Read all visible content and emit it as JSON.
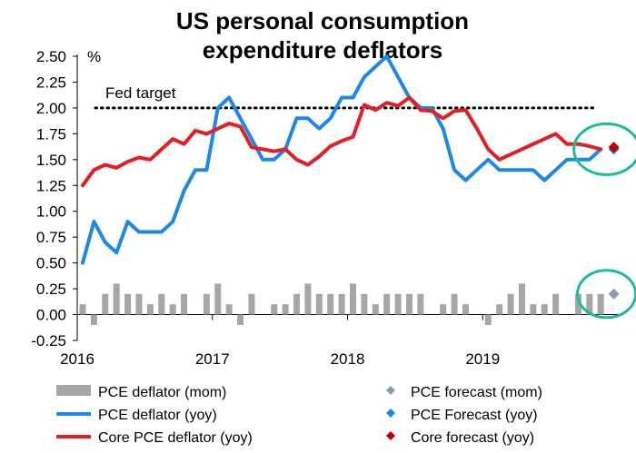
{
  "chart_data": {
    "type": "line",
    "title_lines": [
      "US personal consumption",
      "expenditure deflators"
    ],
    "ylabel": "%",
    "ylim": [
      -0.25,
      2.5
    ],
    "yticks": [
      -0.25,
      0.0,
      0.25,
      0.5,
      0.75,
      1.0,
      1.25,
      1.5,
      1.75,
      2.0,
      2.25,
      2.5
    ],
    "ytick_labels": [
      "-0.25",
      "0.00",
      "0.25",
      "0.50",
      "0.75",
      "1.00",
      "1.25",
      "1.50",
      "1.75",
      "2.00",
      "2.25",
      "2.50"
    ],
    "x_start": "2016-01",
    "x_end": "2019-12",
    "year_ticks": [
      {
        "month": "2016-01",
        "label": "2016"
      },
      {
        "month": "2017-01",
        "label": "2017"
      },
      {
        "month": "2018-01",
        "label": "2018"
      },
      {
        "month": "2019-01",
        "label": "2019"
      }
    ],
    "fed_target": {
      "value": 2.0,
      "label": "Fed target"
    },
    "series": [
      {
        "name": "PCE deflator (mom)",
        "kind": "bar",
        "color": "#A6A6A6",
        "months": [
          "2016-01",
          "2016-02",
          "2016-03",
          "2016-04",
          "2016-05",
          "2016-06",
          "2016-07",
          "2016-08",
          "2016-09",
          "2016-10",
          "2016-11",
          "2016-12",
          "2017-01",
          "2017-02",
          "2017-03",
          "2017-04",
          "2017-05",
          "2017-06",
          "2017-07",
          "2017-08",
          "2017-09",
          "2017-10",
          "2017-11",
          "2017-12",
          "2018-01",
          "2018-02",
          "2018-03",
          "2018-04",
          "2018-05",
          "2018-06",
          "2018-07",
          "2018-08",
          "2018-09",
          "2018-10",
          "2018-11",
          "2018-12",
          "2019-01",
          "2019-02",
          "2019-03",
          "2019-04",
          "2019-05",
          "2019-06",
          "2019-07",
          "2019-08",
          "2019-09",
          "2019-10",
          "2019-11"
        ],
        "values": [
          0.1,
          -0.1,
          0.2,
          0.3,
          0.2,
          0.2,
          0.1,
          0.2,
          0.1,
          0.2,
          0.0,
          0.2,
          0.3,
          0.1,
          -0.1,
          0.2,
          0.0,
          0.1,
          0.1,
          0.2,
          0.3,
          0.2,
          0.2,
          0.2,
          0.3,
          0.2,
          0.1,
          0.2,
          0.2,
          0.2,
          0.2,
          0.0,
          0.1,
          0.2,
          0.1,
          0.0,
          -0.1,
          0.1,
          0.2,
          0.3,
          0.1,
          0.1,
          0.2,
          0.0,
          0.2,
          0.2,
          0.2
        ]
      },
      {
        "name": "PCE deflator (yoy)",
        "kind": "line",
        "color": "#1E88E5",
        "months": [
          "2016-01",
          "2016-02",
          "2016-03",
          "2016-04",
          "2016-05",
          "2016-06",
          "2016-07",
          "2016-08",
          "2016-09",
          "2016-10",
          "2016-11",
          "2016-12",
          "2017-01",
          "2017-02",
          "2017-03",
          "2017-04",
          "2017-05",
          "2017-06",
          "2017-07",
          "2017-08",
          "2017-09",
          "2017-10",
          "2017-11",
          "2017-12",
          "2018-01",
          "2018-02",
          "2018-03",
          "2018-04",
          "2018-05",
          "2018-06",
          "2018-07",
          "2018-08",
          "2018-09",
          "2018-10",
          "2018-11",
          "2018-12",
          "2019-01",
          "2019-02",
          "2019-03",
          "2019-04",
          "2019-05",
          "2019-06",
          "2019-07",
          "2019-08",
          "2019-09",
          "2019-10",
          "2019-11"
        ],
        "values": [
          0.5,
          0.9,
          0.7,
          0.6,
          0.9,
          0.8,
          0.8,
          0.8,
          0.9,
          1.2,
          1.4,
          1.4,
          2.0,
          2.1,
          1.9,
          1.7,
          1.5,
          1.5,
          1.6,
          1.9,
          1.9,
          1.8,
          1.9,
          2.1,
          2.1,
          2.3,
          2.4,
          2.5,
          2.3,
          2.1,
          2.0,
          2.0,
          1.8,
          1.4,
          1.3,
          1.4,
          1.5,
          1.4,
          1.4,
          1.4,
          1.4,
          1.3,
          1.4,
          1.5,
          1.5,
          1.5,
          1.6
        ]
      },
      {
        "name": "Core PCE deflator (yoy)",
        "kind": "line",
        "color": "#E31E24",
        "months": [
          "2016-01",
          "2016-02",
          "2016-03",
          "2016-04",
          "2016-05",
          "2016-06",
          "2016-07",
          "2016-08",
          "2016-09",
          "2016-10",
          "2016-11",
          "2016-12",
          "2017-01",
          "2017-02",
          "2017-03",
          "2017-04",
          "2017-05",
          "2017-06",
          "2017-07",
          "2017-08",
          "2017-09",
          "2017-10",
          "2017-11",
          "2017-12",
          "2018-01",
          "2018-02",
          "2018-03",
          "2018-04",
          "2018-05",
          "2018-06",
          "2018-07",
          "2018-08",
          "2018-09",
          "2018-10",
          "2018-11",
          "2018-12",
          "2019-01",
          "2019-02",
          "2019-03",
          "2019-04",
          "2019-05",
          "2019-06",
          "2019-07",
          "2019-08",
          "2019-09",
          "2019-10",
          "2019-11"
        ],
        "values": [
          1.25,
          1.4,
          1.45,
          1.42,
          1.48,
          1.52,
          1.5,
          1.6,
          1.7,
          1.65,
          1.78,
          1.75,
          1.8,
          1.85,
          1.82,
          1.62,
          1.6,
          1.58,
          1.6,
          1.5,
          1.45,
          1.53,
          1.63,
          1.68,
          1.72,
          2.03,
          1.98,
          2.05,
          2.02,
          2.1,
          1.98,
          1.97,
          1.9,
          1.97,
          1.98,
          1.8,
          1.6,
          1.5,
          1.55,
          1.6,
          1.65,
          1.7,
          1.75,
          1.65,
          1.65,
          1.63,
          1.6
        ]
      },
      {
        "name": "PCE forecast (mom)",
        "kind": "marker",
        "color": "#8C9BB5",
        "month": "2019-12",
        "value": 0.2
      },
      {
        "name": "PCE Forecast (yoy)",
        "kind": "marker",
        "color": "#1E88E5",
        "month": "2019-12",
        "value": 1.6
      },
      {
        "name": "Core forecast (yoy)",
        "kind": "marker",
        "color": "#C00000",
        "month": "2019-12",
        "value": 1.62
      }
    ],
    "highlight_color": "#1ABC9C",
    "legend_placement": "bottom"
  }
}
